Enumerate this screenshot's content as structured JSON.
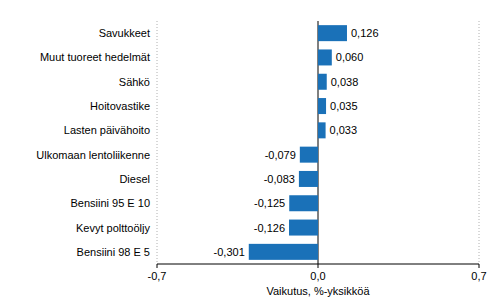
{
  "chart_data": {
    "type": "bar",
    "orientation": "horizontal",
    "x_label": "Vaikutus, %-yksikköä",
    "categories": [
      "Savukkeet",
      "Muut tuoreet hedelmät",
      "Sähkö",
      "Hoitovastike",
      "Lasten päivähoito",
      "Ulkomaan lentoliikenne",
      "Diesel",
      "Bensiini 95 E 10",
      "Kevyt polttoöljy",
      "Bensiini 98 E 5"
    ],
    "values": [
      0.126,
      0.06,
      0.038,
      0.035,
      0.033,
      -0.079,
      -0.083,
      -0.125,
      -0.126,
      -0.301
    ],
    "value_labels": [
      "0,126",
      "0,060",
      "0,038",
      "0,035",
      "0,033",
      "-0,079",
      "-0,083",
      "-0,125",
      "-0,126",
      "-0,301"
    ],
    "data_labels": true,
    "color": "#1a71b8",
    "xlim": [
      -0.7,
      0.7
    ],
    "xticks": [
      {
        "value": -0.7,
        "label": "-0,7"
      },
      {
        "value": 0,
        "label": "0,0"
      },
      {
        "value": 0.7,
        "label": "0,7"
      }
    ],
    "grid": true
  }
}
